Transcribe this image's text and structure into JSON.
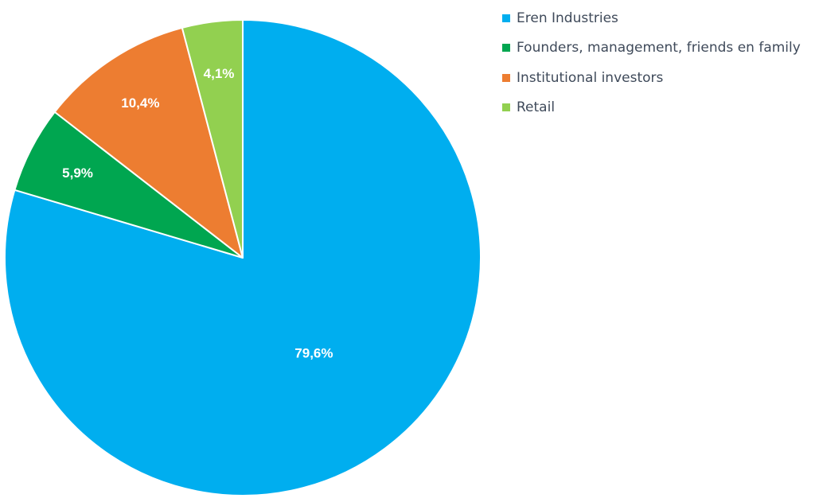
{
  "chart_data": {
    "type": "pie",
    "title": "",
    "start_angle_deg": 0,
    "direction": "clockwise",
    "legend_position": "top-right",
    "slices": [
      {
        "name": "Eren Industries",
        "value": 79.6,
        "label": "79,6%",
        "color": "#00aeef"
      },
      {
        "name": "Founders, management, friends en family",
        "value": 5.9,
        "label": "5,9%",
        "color": "#00a650"
      },
      {
        "name": "Institutional investors",
        "value": 10.4,
        "label": "10,4%",
        "color": "#ed7d31"
      },
      {
        "name": "Retail",
        "value": 4.1,
        "label": "4,1%",
        "color": "#92d050"
      }
    ]
  }
}
